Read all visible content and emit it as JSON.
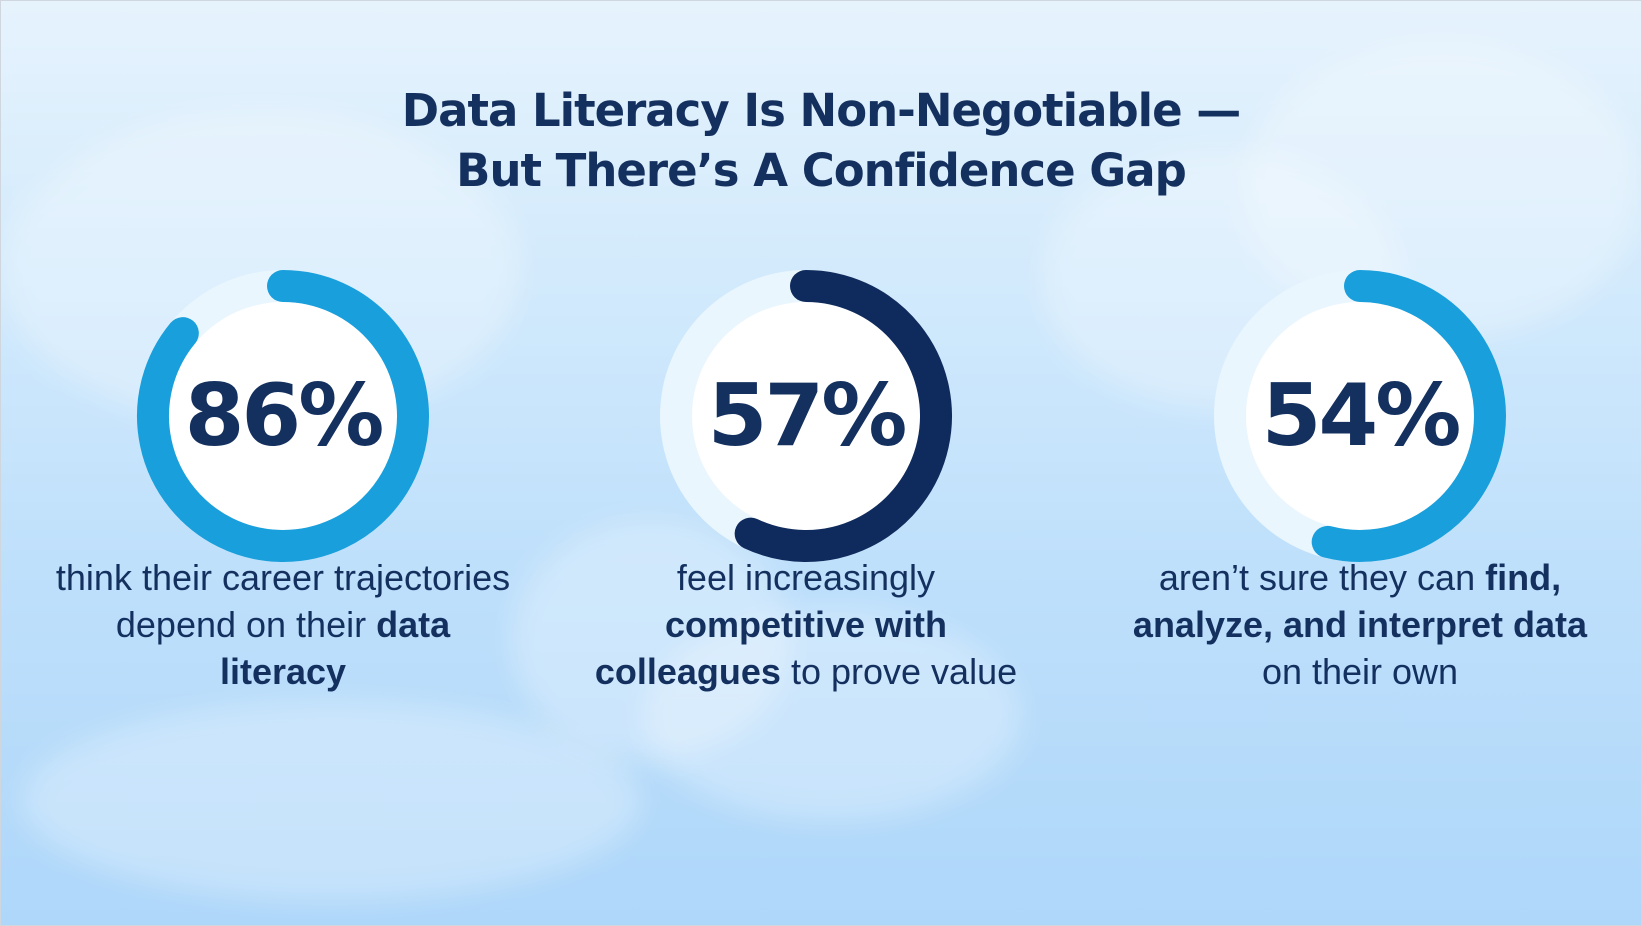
{
  "title": {
    "line1": "Data Literacy Is Non-Negotiable —",
    "line2": "But There’s A Confidence Gap"
  },
  "colors": {
    "background_top": "#e6f3fd",
    "background_bottom": "#aed7fa",
    "text": "#14305f",
    "ring_light_blue": "#199fdc",
    "ring_dark_navy": "#0f2a5c",
    "ring_track": "#eaf6fe",
    "ring_center": "#ffffff"
  },
  "chart_data": [
    {
      "type": "donut",
      "value": 86,
      "max": 100,
      "label": "86%",
      "color": "#199fdc",
      "caption": [
        {
          "text": "think their career trajectories depend on their ",
          "bold": false
        },
        {
          "text": "data literacy",
          "bold": true
        }
      ]
    },
    {
      "type": "donut",
      "value": 57,
      "max": 100,
      "label": "57%",
      "color": "#0f2a5c",
      "caption": [
        {
          "text": "feel increasingly ",
          "bold": false
        },
        {
          "text": "competitive with colleagues",
          "bold": true
        },
        {
          "text": " to prove value",
          "bold": false
        }
      ]
    },
    {
      "type": "donut",
      "value": 54,
      "max": 100,
      "label": "54%",
      "color": "#199fdc",
      "caption": [
        {
          "text": "aren’t sure they can ",
          "bold": false
        },
        {
          "text": "find, analyze, and interpret data",
          "bold": true
        },
        {
          "text": " on their own",
          "bold": false
        }
      ]
    }
  ]
}
